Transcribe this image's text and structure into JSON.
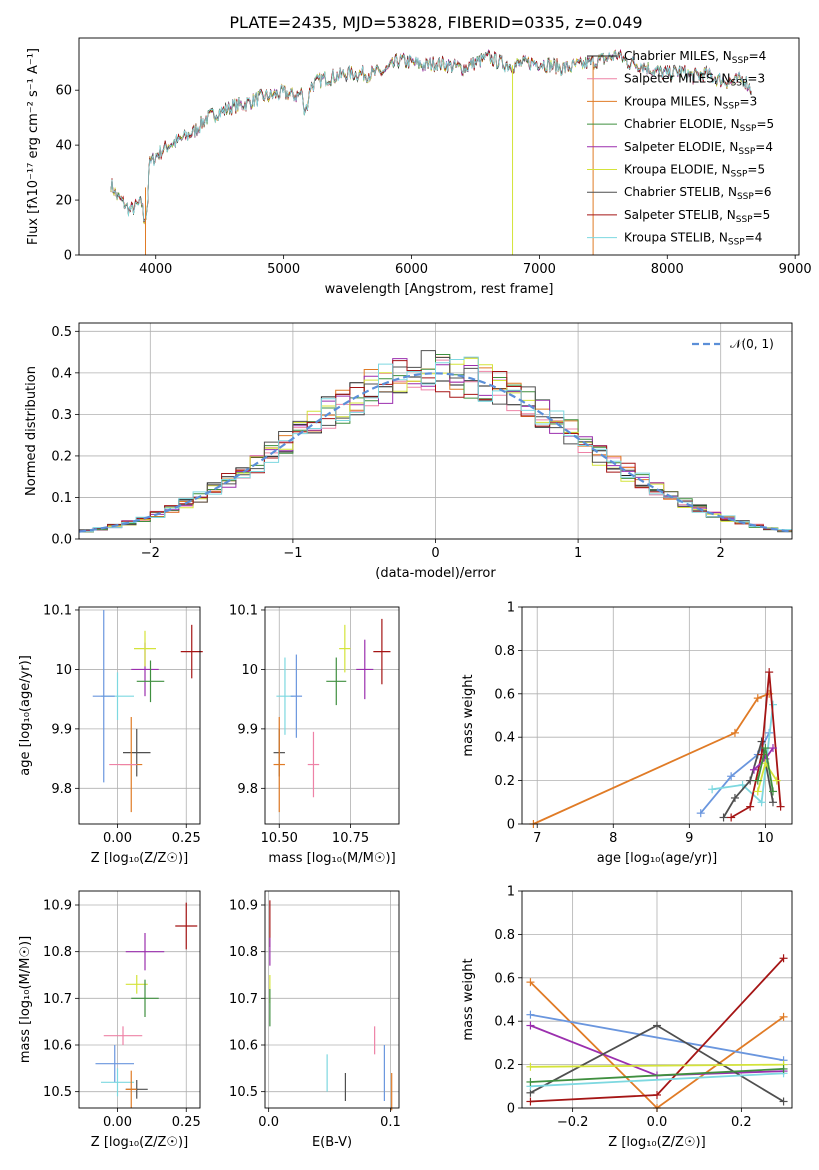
{
  "title": "PLATE=2435, MJD=53828, FIBERID=0335, z=0.049",
  "colors": {
    "chabrier_miles": "#1f1f1f",
    "salpeter_miles": "#ee82a6",
    "kroupa_miles": "#e07b26",
    "chabrier_elodie": "#3f8f3f",
    "salpeter_elodie": "#9b2fae",
    "kroupa_elodie": "#d4e33a",
    "chabrier_stelib": "#4f4f4f",
    "salpeter_stelib": "#a51515",
    "kroupa_stelib": "#7dd8e0",
    "normal": "#5b8fd8",
    "extra_blue": "#6a96de"
  },
  "chart_data": [
    {
      "id": "spectrum",
      "type": "line",
      "title": "PLATE=2435, MJD=53828, FIBERID=0335, z=0.049",
      "xlabel": "wavelength [Angstrom, rest frame]",
      "ylabel": "Flux [fλ10⁻¹⁷ erg cm⁻² s⁻¹ A⁻¹]",
      "xlim": [
        3400,
        9030
      ],
      "ylim": [
        0,
        79
      ],
      "xticks": [
        4000,
        5000,
        6000,
        7000,
        8000,
        9000
      ],
      "yticks": [
        0,
        20,
        40,
        60
      ],
      "grid": false,
      "legend_position": "right",
      "legend": [
        {
          "label": "Chabrier MILES, N",
          "sub": "SSP",
          "suffix": "=4",
          "color_key": "chabrier_miles"
        },
        {
          "label": "Salpeter MILES, N",
          "sub": "SSP",
          "suffix": "=3",
          "color_key": "salpeter_miles"
        },
        {
          "label": "Kroupa MILES, N",
          "sub": "SSP",
          "suffix": "=3",
          "color_key": "kroupa_miles"
        },
        {
          "label": "Chabrier ELODIE, N",
          "sub": "SSP",
          "suffix": "=5",
          "color_key": "chabrier_elodie"
        },
        {
          "label": "Salpeter ELODIE, N",
          "sub": "SSP",
          "suffix": "=4",
          "color_key": "salpeter_elodie"
        },
        {
          "label": "Kroupa ELODIE, N",
          "sub": "SSP",
          "suffix": "=5",
          "color_key": "kroupa_elodie"
        },
        {
          "label": "Chabrier STELIB, N",
          "sub": "SSP",
          "suffix": "=6",
          "color_key": "chabrier_stelib"
        },
        {
          "label": "Salpeter STELIB, N",
          "sub": "SSP",
          "suffix": "=5",
          "color_key": "salpeter_stelib"
        },
        {
          "label": "Kroupa STELIB, N",
          "sub": "SSP",
          "suffix": "=4",
          "color_key": "kroupa_stelib"
        }
      ],
      "continuum": [
        [
          3650,
          26
        ],
        [
          3700,
          21
        ],
        [
          3750,
          19
        ],
        [
          3800,
          16
        ],
        [
          3850,
          18
        ],
        [
          3900,
          19
        ],
        [
          3950,
          33
        ],
        [
          4000,
          36
        ],
        [
          4100,
          40
        ],
        [
          4200,
          42
        ],
        [
          4300,
          45
        ],
        [
          4400,
          50
        ],
        [
          4500,
          52
        ],
        [
          4600,
          54
        ],
        [
          4700,
          55
        ],
        [
          4800,
          57
        ],
        [
          4900,
          58
        ],
        [
          5000,
          59
        ],
        [
          5100,
          58
        ],
        [
          5200,
          61
        ],
        [
          5300,
          64
        ],
        [
          5400,
          65
        ],
        [
          5500,
          66
        ],
        [
          5600,
          66
        ],
        [
          5700,
          66
        ],
        [
          5800,
          67
        ],
        [
          5900,
          71
        ],
        [
          6000,
          70
        ],
        [
          6100,
          69
        ],
        [
          6200,
          70
        ],
        [
          6300,
          69
        ],
        [
          6400,
          68
        ],
        [
          6500,
          70
        ],
        [
          6560,
          71
        ],
        [
          6600,
          72
        ],
        [
          6700,
          70
        ],
        [
          6800,
          69
        ],
        [
          6900,
          70
        ],
        [
          7000,
          70
        ],
        [
          7100,
          69
        ],
        [
          7200,
          68
        ],
        [
          7300,
          69
        ],
        [
          7400,
          70
        ],
        [
          7500,
          71
        ],
        [
          7600,
          73
        ],
        [
          7700,
          70
        ],
        [
          7800,
          69
        ],
        [
          7900,
          67
        ],
        [
          8000,
          66
        ],
        [
          8100,
          67
        ],
        [
          8200,
          65
        ],
        [
          8300,
          66
        ],
        [
          8400,
          64
        ],
        [
          8500,
          63
        ],
        [
          8600,
          64
        ],
        [
          8660,
          60
        ]
      ],
      "annotations": [
        {
          "x": 3920,
          "to": 0,
          "color_key": "kroupa_miles"
        },
        {
          "x": 6790,
          "to": 0,
          "color_key": "kroupa_elodie"
        },
        {
          "x": 7420,
          "to": 0,
          "color_key": "kroupa_miles",
          "spans_to": 7600
        }
      ]
    },
    {
      "id": "residuals",
      "type": "histogram",
      "xlabel": "(data-model)/error",
      "ylabel": "Normed distribution",
      "xlim": [
        -2.5,
        2.5
      ],
      "ylim": [
        0,
        0.52
      ],
      "xticks": [
        -2,
        -1,
        0,
        1,
        2
      ],
      "yticks": [
        0.0,
        0.1,
        0.2,
        0.3,
        0.4,
        0.5
      ],
      "grid": true,
      "legend_position": "top-right",
      "legend": [
        {
          "label": "𝒩(0, 1)",
          "color_key": "normal",
          "dashed": true
        }
      ],
      "bin_width": 0.1,
      "bin_start": -2.5
    },
    {
      "id": "age_vs_Z",
      "type": "scatter",
      "xlabel": "Z [log₁₀(Z/Z☉)]",
      "ylabel": "age  [log₁₀(age/yr)]",
      "xlim": [
        -0.14,
        0.3
      ],
      "ylim": [
        9.74,
        10.105
      ],
      "xticks": [
        0.0,
        0.25
      ],
      "xticklabels": [
        "0.00",
        "0.25"
      ],
      "yticks": [
        9.8,
        9.9,
        10.0,
        10.1
      ],
      "grid": true,
      "points": [
        {
          "x": 0.27,
          "y": 10.03,
          "xerr": 0.04,
          "yerr": 0.045,
          "color_key": "salpeter_stelib"
        },
        {
          "x": 0.1,
          "y": 10.0,
          "xerr": 0.05,
          "yerr": 0.045,
          "color_key": "salpeter_elodie"
        },
        {
          "x": 0.1,
          "y": 10.035,
          "xerr": 0.04,
          "yerr": 0.03,
          "color_key": "kroupa_elodie"
        },
        {
          "x": 0.12,
          "y": 9.98,
          "xerr": 0.05,
          "yerr": 0.035,
          "color_key": "chabrier_elodie"
        },
        {
          "x": 0.0,
          "y": 9.955,
          "xerr": 0.06,
          "yerr": 0.04,
          "color_key": "kroupa_stelib"
        },
        {
          "x": -0.05,
          "y": 9.955,
          "xerr": 0.04,
          "yerr": 0.145,
          "color_key": "extra_blue"
        },
        {
          "x": 0.07,
          "y": 9.86,
          "xerr": 0.05,
          "yerr": 0.04,
          "color_key": "chabrier_stelib"
        },
        {
          "x": 0.05,
          "y": 9.84,
          "xerr": 0.04,
          "yerr": 0.08,
          "color_key": "kroupa_miles"
        },
        {
          "x": 0.02,
          "y": 9.84,
          "xerr": 0.05,
          "yerr": 0.0,
          "color_key": "salpeter_miles"
        }
      ]
    },
    {
      "id": "age_vs_mass",
      "type": "scatter",
      "xlabel": "mass [log₁₀(M/M☉)]",
      "ylabel": "",
      "xlim": [
        10.45,
        10.92
      ],
      "ylim": [
        9.74,
        10.105
      ],
      "xticks": [
        10.5,
        10.75
      ],
      "xticklabels": [
        "10.50",
        "10.75"
      ],
      "yticks": [
        9.8,
        9.9,
        10.0,
        10.1
      ],
      "grid": true,
      "points": [
        {
          "x": 10.86,
          "y": 10.03,
          "xerr": 0.03,
          "yerr": 0.055,
          "color_key": "salpeter_stelib"
        },
        {
          "x": 10.8,
          "y": 10.0,
          "xerr": 0.03,
          "yerr": 0.05,
          "color_key": "salpeter_elodie"
        },
        {
          "x": 10.73,
          "y": 10.035,
          "xerr": 0.02,
          "yerr": 0.04,
          "color_key": "kroupa_elodie"
        },
        {
          "x": 10.7,
          "y": 9.98,
          "xerr": 0.035,
          "yerr": 0.04,
          "color_key": "chabrier_elodie"
        },
        {
          "x": 10.52,
          "y": 9.955,
          "xerr": 0.03,
          "yerr": 0.065,
          "color_key": "kroupa_stelib"
        },
        {
          "x": 10.56,
          "y": 9.955,
          "xerr": 0.02,
          "yerr": 0.07,
          "color_key": "extra_blue"
        },
        {
          "x": 10.5,
          "y": 9.86,
          "xerr": 0.02,
          "yerr": 0.04,
          "color_key": "chabrier_stelib"
        },
        {
          "x": 10.5,
          "y": 9.84,
          "xerr": 0.02,
          "yerr": 0.08,
          "color_key": "kroupa_miles"
        },
        {
          "x": 10.62,
          "y": 9.84,
          "xerr": 0.02,
          "yerr": 0.055,
          "color_key": "salpeter_miles"
        }
      ]
    },
    {
      "id": "mass_weight_vs_age",
      "type": "line",
      "xlabel": "age  [log₁₀(age/yr)]",
      "ylabel": "mass weight",
      "xlim": [
        6.8,
        10.35
      ],
      "ylim": [
        0,
        1.0
      ],
      "xticks": [
        7,
        8,
        9,
        10
      ],
      "yticks": [
        0.0,
        0.2,
        0.4,
        0.6,
        0.8,
        1.0
      ],
      "grid": true,
      "series": [
        {
          "color_key": "kroupa_miles",
          "x": [
            6.95,
            9.6,
            9.9,
            10.05
          ],
          "y": [
            0.0,
            0.42,
            0.58,
            0.6
          ]
        },
        {
          "color_key": "extra_blue",
          "x": [
            9.15,
            9.55,
            9.9,
            10.05
          ],
          "y": [
            0.05,
            0.22,
            0.32,
            0.42
          ]
        },
        {
          "color_key": "kroupa_stelib",
          "x": [
            9.3,
            9.7,
            9.95,
            10.1
          ],
          "y": [
            0.16,
            0.18,
            0.1,
            0.55
          ]
        },
        {
          "color_key": "chabrier_stelib",
          "x": [
            9.45,
            9.6,
            9.8,
            9.95,
            10.1
          ],
          "y": [
            0.03,
            0.12,
            0.2,
            0.38,
            0.1
          ]
        },
        {
          "color_key": "salpeter_stelib",
          "x": [
            9.55,
            9.8,
            9.95,
            10.05,
            10.2
          ],
          "y": [
            0.03,
            0.08,
            0.32,
            0.7,
            0.08
          ]
        },
        {
          "color_key": "salpeter_elodie",
          "x": [
            9.85,
            10.0,
            10.1
          ],
          "y": [
            0.25,
            0.3,
            0.35
          ]
        },
        {
          "color_key": "kroupa_elodie",
          "x": [
            9.9,
            10.0,
            10.15
          ],
          "y": [
            0.15,
            0.28,
            0.2
          ]
        },
        {
          "color_key": "chabrier_elodie",
          "x": [
            9.9,
            10.0,
            10.1
          ],
          "y": [
            0.2,
            0.35,
            0.15
          ]
        }
      ]
    },
    {
      "id": "mass_vs_Z",
      "type": "scatter",
      "xlabel": "Z [log₁₀(Z/Z☉)]",
      "ylabel": "mass [log₁₀(M/M☉)]",
      "xlim": [
        -0.14,
        0.3
      ],
      "ylim": [
        10.465,
        10.93
      ],
      "xticks": [
        0.0,
        0.25
      ],
      "xticklabels": [
        "0.00",
        "0.25"
      ],
      "yticks": [
        10.5,
        10.6,
        10.7,
        10.8,
        10.9
      ],
      "grid": true,
      "points": [
        {
          "x": 0.25,
          "y": 10.855,
          "xerr": 0.04,
          "yerr": 0.05,
          "color_key": "salpeter_stelib"
        },
        {
          "x": 0.1,
          "y": 10.8,
          "xerr": 0.07,
          "yerr": 0.04,
          "color_key": "salpeter_elodie"
        },
        {
          "x": 0.07,
          "y": 10.73,
          "xerr": 0.04,
          "yerr": 0.02,
          "color_key": "kroupa_elodie"
        },
        {
          "x": 0.1,
          "y": 10.7,
          "xerr": 0.05,
          "yerr": 0.04,
          "color_key": "chabrier_elodie"
        },
        {
          "x": 0.02,
          "y": 10.62,
          "xerr": 0.07,
          "yerr": 0.02,
          "color_key": "salpeter_miles"
        },
        {
          "x": -0.01,
          "y": 10.56,
          "xerr": 0.07,
          "yerr": 0.04,
          "color_key": "extra_blue"
        },
        {
          "x": 0.0,
          "y": 10.52,
          "xerr": 0.06,
          "yerr": 0.03,
          "color_key": "kroupa_stelib"
        },
        {
          "x": 0.07,
          "y": 10.505,
          "xerr": 0.04,
          "yerr": 0.02,
          "color_key": "chabrier_stelib"
        },
        {
          "x": 0.05,
          "y": 10.505,
          "xerr": 0.02,
          "yerr": 0.04,
          "color_key": "kroupa_miles"
        }
      ]
    },
    {
      "id": "mass_vs_EBV",
      "type": "scatter",
      "xlabel": "E(B-V)",
      "ylabel": "",
      "xlim": [
        -0.003,
        0.107
      ],
      "ylim": [
        10.465,
        10.93
      ],
      "xticks": [
        0.0,
        0.1
      ],
      "xticklabels": [
        "0.0",
        "0.1"
      ],
      "yticks": [
        10.5,
        10.6,
        10.7,
        10.8,
        10.9
      ],
      "grid": true,
      "points": [
        {
          "x": 0.001,
          "y": 10.86,
          "xerr": 0,
          "yerr": 0.05,
          "color_key": "salpeter_stelib"
        },
        {
          "x": 0.001,
          "y": 10.8,
          "xerr": 0,
          "yerr": 0.03,
          "color_key": "salpeter_elodie"
        },
        {
          "x": 0.001,
          "y": 10.72,
          "xerr": 0,
          "yerr": 0.03,
          "color_key": "kroupa_elodie"
        },
        {
          "x": 0.001,
          "y": 10.68,
          "xerr": 0,
          "yerr": 0.04,
          "color_key": "chabrier_elodie"
        },
        {
          "x": 0.048,
          "y": 10.54,
          "xerr": 0,
          "yerr": 0.04,
          "color_key": "kroupa_stelib"
        },
        {
          "x": 0.063,
          "y": 10.51,
          "xerr": 0,
          "yerr": 0.03,
          "color_key": "chabrier_stelib"
        },
        {
          "x": 0.087,
          "y": 10.61,
          "xerr": 0,
          "yerr": 0.03,
          "color_key": "salpeter_miles"
        },
        {
          "x": 0.095,
          "y": 10.54,
          "xerr": 0,
          "yerr": 0.06,
          "color_key": "extra_blue"
        },
        {
          "x": 0.101,
          "y": 10.5,
          "xerr": 0,
          "yerr": 0.04,
          "color_key": "kroupa_miles"
        }
      ]
    },
    {
      "id": "mass_weight_vs_Z",
      "type": "line",
      "xlabel": "Z [log₁₀(Z/Z☉)]",
      "ylabel": "mass weight",
      "xlim": [
        -0.32,
        0.32
      ],
      "ylim": [
        0,
        1.0
      ],
      "xticks": [
        -0.2,
        0.0,
        0.2
      ],
      "xticklabels": [
        "−0.2",
        "0.0",
        "0.2"
      ],
      "yticks": [
        0.0,
        0.2,
        0.4,
        0.6,
        0.8,
        1.0
      ],
      "grid": true,
      "series": [
        {
          "color_key": "kroupa_miles",
          "x": [
            -0.3,
            0.0,
            0.3
          ],
          "y": [
            0.58,
            0.0,
            0.42
          ]
        },
        {
          "color_key": "extra_blue",
          "x": [
            -0.3,
            0.3
          ],
          "y": [
            0.43,
            0.22
          ]
        },
        {
          "color_key": "salpeter_elodie",
          "x": [
            -0.3,
            0.0,
            0.3
          ],
          "y": [
            0.38,
            0.15,
            0.17
          ]
        },
        {
          "color_key": "chabrier_stelib",
          "x": [
            -0.3,
            0.0,
            0.3
          ],
          "y": [
            0.07,
            0.38,
            0.03
          ]
        },
        {
          "color_key": "salpeter_stelib",
          "x": [
            -0.3,
            0.0,
            0.3
          ],
          "y": [
            0.03,
            0.06,
            0.69
          ]
        },
        {
          "color_key": "kroupa_elodie",
          "x": [
            -0.3,
            0.3
          ],
          "y": [
            0.19,
            0.2
          ]
        },
        {
          "color_key": "kroupa_stelib",
          "x": [
            -0.3,
            0.3
          ],
          "y": [
            0.1,
            0.16
          ]
        },
        {
          "color_key": "chabrier_elodie",
          "x": [
            -0.3,
            0.3
          ],
          "y": [
            0.12,
            0.18
          ]
        }
      ]
    }
  ]
}
